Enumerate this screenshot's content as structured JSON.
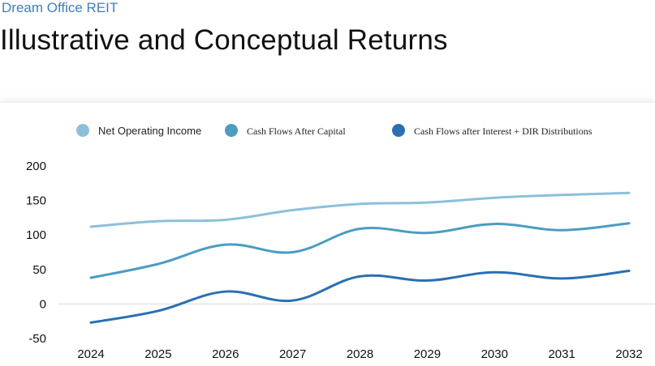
{
  "header": {
    "company": "Dream Office REIT",
    "title": "Illustrative and Conceptual Returns"
  },
  "chart_data": {
    "type": "line",
    "title": "",
    "xlabel": "",
    "ylabel": "",
    "categories": [
      "2024",
      "2025",
      "2026",
      "2027",
      "2028",
      "2029",
      "2030",
      "2031",
      "2032"
    ],
    "yticks": [
      200,
      150,
      100,
      50,
      0,
      -50
    ],
    "ylim": [
      -50,
      200
    ],
    "grid": false,
    "legend_position": "top",
    "series": [
      {
        "name": "Net Operating Income",
        "color": "#8cc0da",
        "values": [
          112,
          120,
          122,
          136,
          145,
          147,
          154,
          158,
          161
        ]
      },
      {
        "name": "Cash Flows After Capital",
        "color": "#4b9cc1",
        "values": [
          38,
          58,
          86,
          75,
          109,
          103,
          116,
          107,
          117
        ]
      },
      {
        "name": "Cash Flows after Interest + DIR Distributions",
        "color": "#2a6fb2",
        "values": [
          -27,
          -10,
          18,
          5,
          40,
          34,
          46,
          37,
          48
        ]
      }
    ]
  }
}
